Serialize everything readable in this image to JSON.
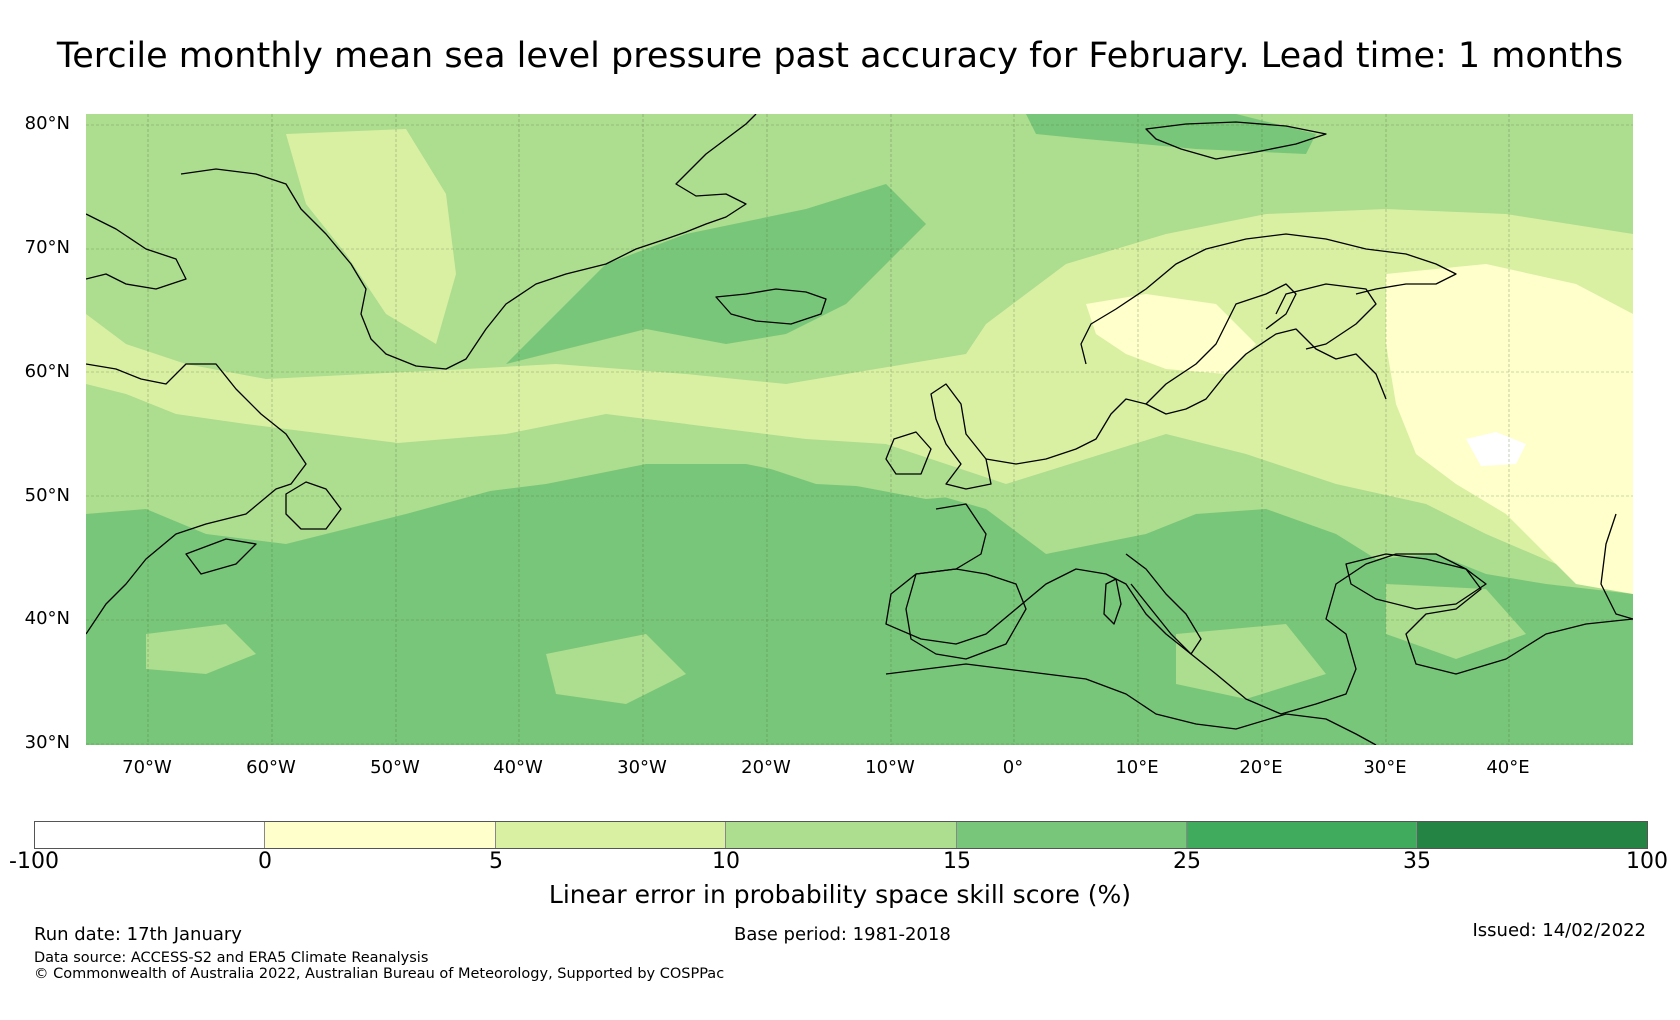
{
  "title": "Tercile monthly mean sea level pressure past accuracy for February. Lead time: 1 months",
  "map": {
    "lat_labels": [
      "80°N",
      "70°N",
      "60°N",
      "50°N",
      "40°N",
      "30°N"
    ],
    "lon_labels": [
      "70°W",
      "60°W",
      "50°W",
      "40°W",
      "30°W",
      "20°W",
      "10°W",
      "0°",
      "10°E",
      "20°E",
      "30°E",
      "40°E"
    ],
    "extent": {
      "lon_min": -75,
      "lon_max": 50,
      "lat_min": 30,
      "lat_max": 81
    },
    "skill_zones": [
      {
        "name": "North Atlantic subtropics",
        "category": "15 to 25",
        "color": "#78c679"
      },
      {
        "name": "Greenland Sea",
        "category": "15 to 25",
        "color": "#78c679"
      },
      {
        "name": "Central North Atlantic",
        "category": "10 to 15",
        "color": "#addd8e"
      },
      {
        "name": "Northern Europe",
        "category": "5 to 10",
        "color": "#d9f0a3"
      },
      {
        "name": "Western Russia",
        "category": "0 to 5",
        "color": "#ffffcc"
      }
    ]
  },
  "colorbar": {
    "label": "Linear error in probability space skill score (%)",
    "ticks": [
      "-100",
      "0",
      "5",
      "10",
      "15",
      "25",
      "35",
      "100"
    ],
    "colors": [
      "#ffffff",
      "#ffffcc",
      "#d9f0a3",
      "#addd8e",
      "#78c679",
      "#41ab5d",
      "#238443"
    ]
  },
  "footer": {
    "run_date": "Run date: 17th January",
    "base_period": "Base period: 1981-2018",
    "issued": "Issued: 14/02/2022",
    "data_source": "Data source: ACCESS-S2 and ERA5 Climate Reanalysis",
    "copyright": "© Commonwealth of Australia 2022, Australian Bureau of Meteorology, Supported by COSPPac"
  }
}
